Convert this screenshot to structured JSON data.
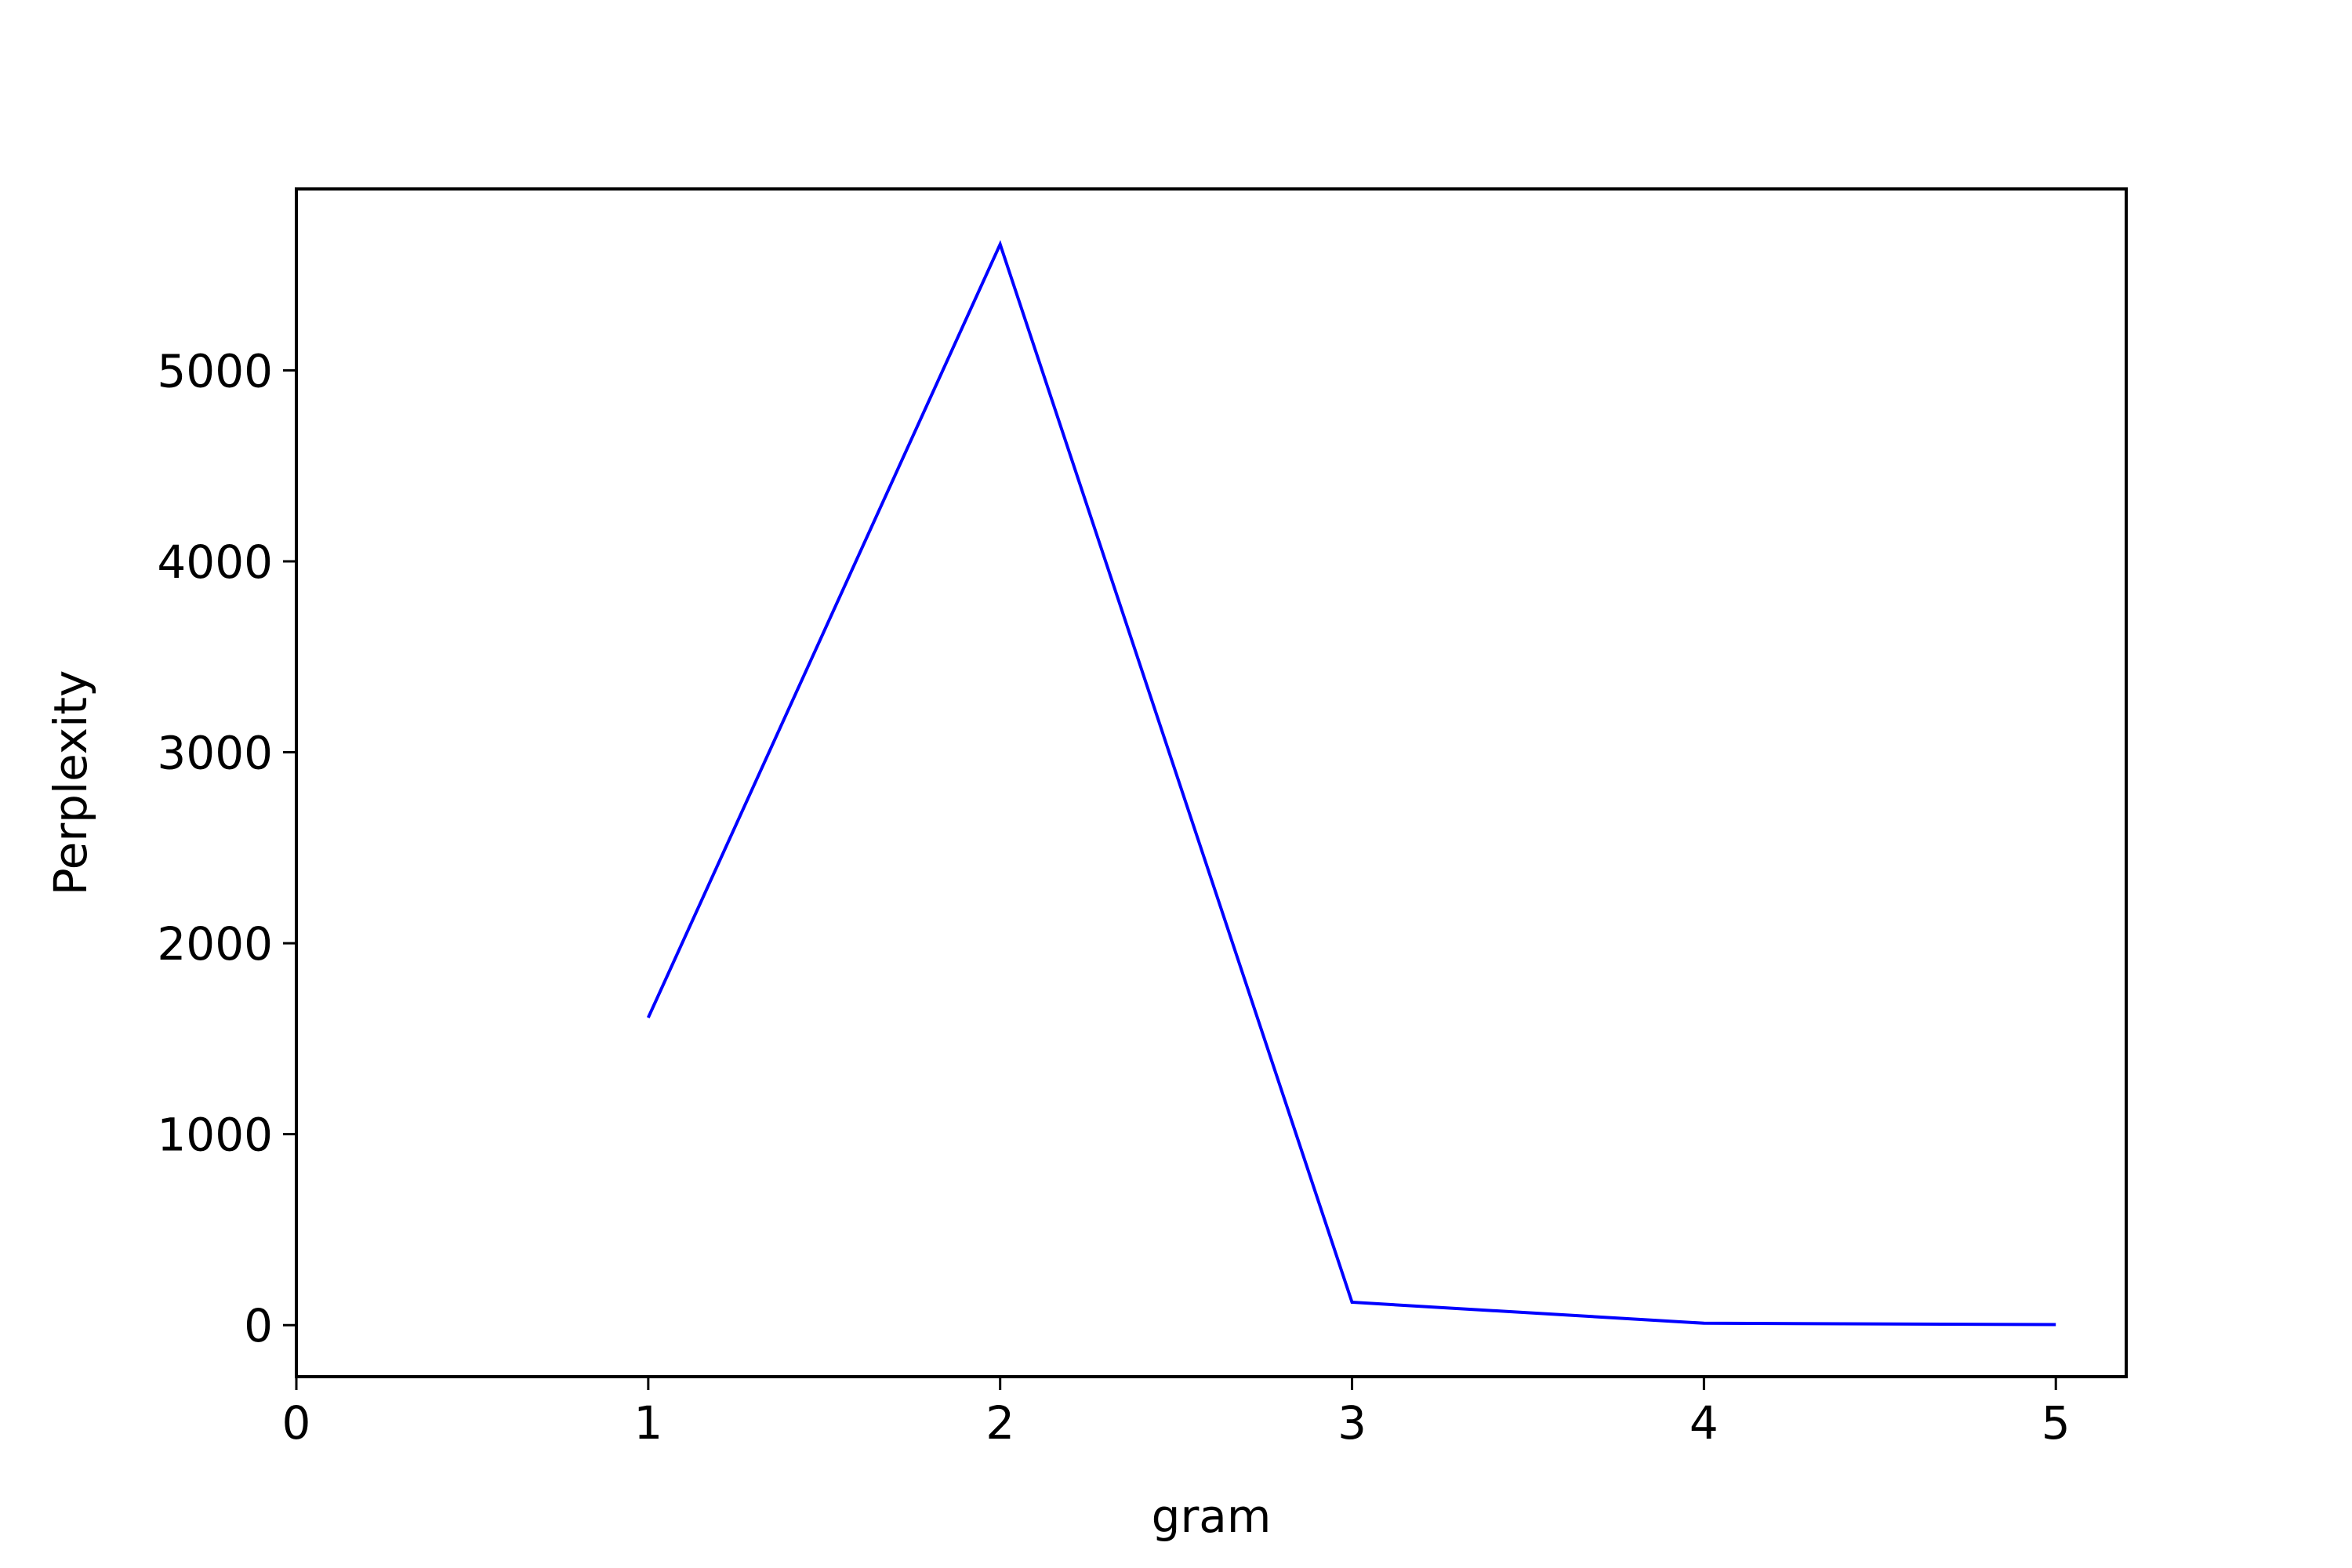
{
  "chart_data": {
    "type": "line",
    "title": "",
    "xlabel": "gram",
    "ylabel": "Perplexity",
    "xlim": [
      0,
      5.2
    ],
    "ylim": [
      -270,
      5950
    ],
    "xticks": [
      0,
      1,
      2,
      3,
      4,
      5
    ],
    "xtick_labels": [
      "0",
      "1",
      "2",
      "3",
      "4",
      "5"
    ],
    "yticks": [
      0,
      1000,
      2000,
      3000,
      4000,
      5000
    ],
    "ytick_labels": [
      "0",
      "1000",
      "2000",
      "3000",
      "4000",
      "5000"
    ],
    "grid": false,
    "legend": "none",
    "series": [
      {
        "color": "#0000ff",
        "x": [
          1,
          2,
          3,
          4,
          5
        ],
        "y": [
          1610,
          5660,
          120,
          10,
          3
        ]
      }
    ]
  }
}
